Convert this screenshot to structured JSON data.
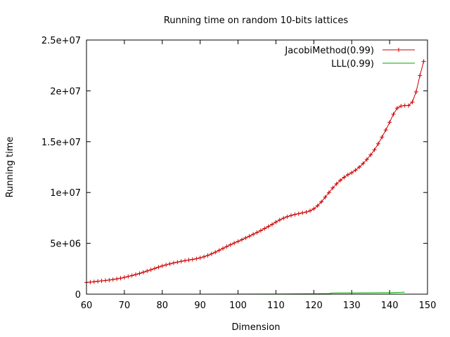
{
  "chart_data": {
    "type": "line",
    "title": "Running time on random 10-bits lattices",
    "xlabel": "Dimension",
    "ylabel": "Running time",
    "xlim": [
      60,
      150
    ],
    "ylim": [
      0,
      25000000
    ],
    "xticks": [
      60,
      70,
      80,
      90,
      100,
      110,
      120,
      130,
      140,
      150
    ],
    "xtick_labels": [
      "60",
      "70",
      "80",
      "90",
      "100",
      "110",
      "120",
      "130",
      "140",
      "150"
    ],
    "yticks": [
      0,
      5000000,
      10000000,
      15000000,
      20000000,
      25000000
    ],
    "ytick_labels": [
      "0",
      "5e+06",
      "1e+07",
      "1.5e+07",
      "2e+07",
      "2.5e+07"
    ],
    "grid": false,
    "legend_position": "top-right",
    "series": [
      {
        "name": "JacobiMethod(0.99)",
        "color": "#cc0000",
        "marker": "plus",
        "x": [
          60,
          61,
          62,
          63,
          64,
          65,
          66,
          67,
          68,
          69,
          70,
          71,
          72,
          73,
          74,
          75,
          76,
          77,
          78,
          79,
          80,
          81,
          82,
          83,
          84,
          85,
          86,
          87,
          88,
          89,
          90,
          91,
          92,
          93,
          94,
          95,
          96,
          97,
          98,
          99,
          100,
          101,
          102,
          103,
          104,
          105,
          106,
          107,
          108,
          109,
          110,
          111,
          112,
          113,
          114,
          115,
          116,
          117,
          118,
          119,
          120,
          121,
          122,
          123,
          124,
          125,
          126,
          127,
          128,
          129,
          130,
          131,
          132,
          133,
          134,
          135,
          136,
          137,
          138,
          139,
          140,
          141,
          142,
          143,
          144,
          145,
          146,
          147,
          148,
          149
        ],
        "values": [
          1150000,
          1180000,
          1220000,
          1270000,
          1310000,
          1350000,
          1390000,
          1440000,
          1500000,
          1570000,
          1650000,
          1740000,
          1830000,
          1930000,
          2040000,
          2160000,
          2280000,
          2400000,
          2530000,
          2660000,
          2780000,
          2880000,
          2980000,
          3070000,
          3150000,
          3230000,
          3300000,
          3360000,
          3420000,
          3490000,
          3570000,
          3680000,
          3810000,
          3960000,
          4130000,
          4310000,
          4500000,
          4680000,
          4860000,
          5030000,
          5190000,
          5360000,
          5530000,
          5710000,
          5890000,
          6070000,
          6260000,
          6460000,
          6660000,
          6860000,
          7100000,
          7300000,
          7480000,
          7620000,
          7740000,
          7840000,
          7920000,
          8000000,
          8080000,
          8200000,
          8400000,
          8700000,
          9080000,
          9540000,
          10000000,
          10450000,
          10850000,
          11200000,
          11500000,
          11750000,
          11950000,
          12200000,
          12500000,
          12850000,
          13250000,
          13700000,
          14200000,
          14800000,
          15450000,
          16150000,
          16900000,
          17700000,
          18300000,
          18500000,
          18550000,
          18550000,
          18900000,
          19900000,
          21500000,
          22900000
        ]
      },
      {
        "name": "LLL(0.99)",
        "color": "#00aa00",
        "marker": "none",
        "x": [
          82,
          90,
          100,
          110,
          120,
          124,
          125,
          130,
          135,
          140,
          141,
          142,
          143,
          144
        ],
        "values": [
          0,
          0,
          10000,
          20000,
          40000,
          60000,
          120000,
          130000,
          140000,
          150000,
          160000,
          170000,
          180000,
          200000
        ]
      }
    ]
  }
}
